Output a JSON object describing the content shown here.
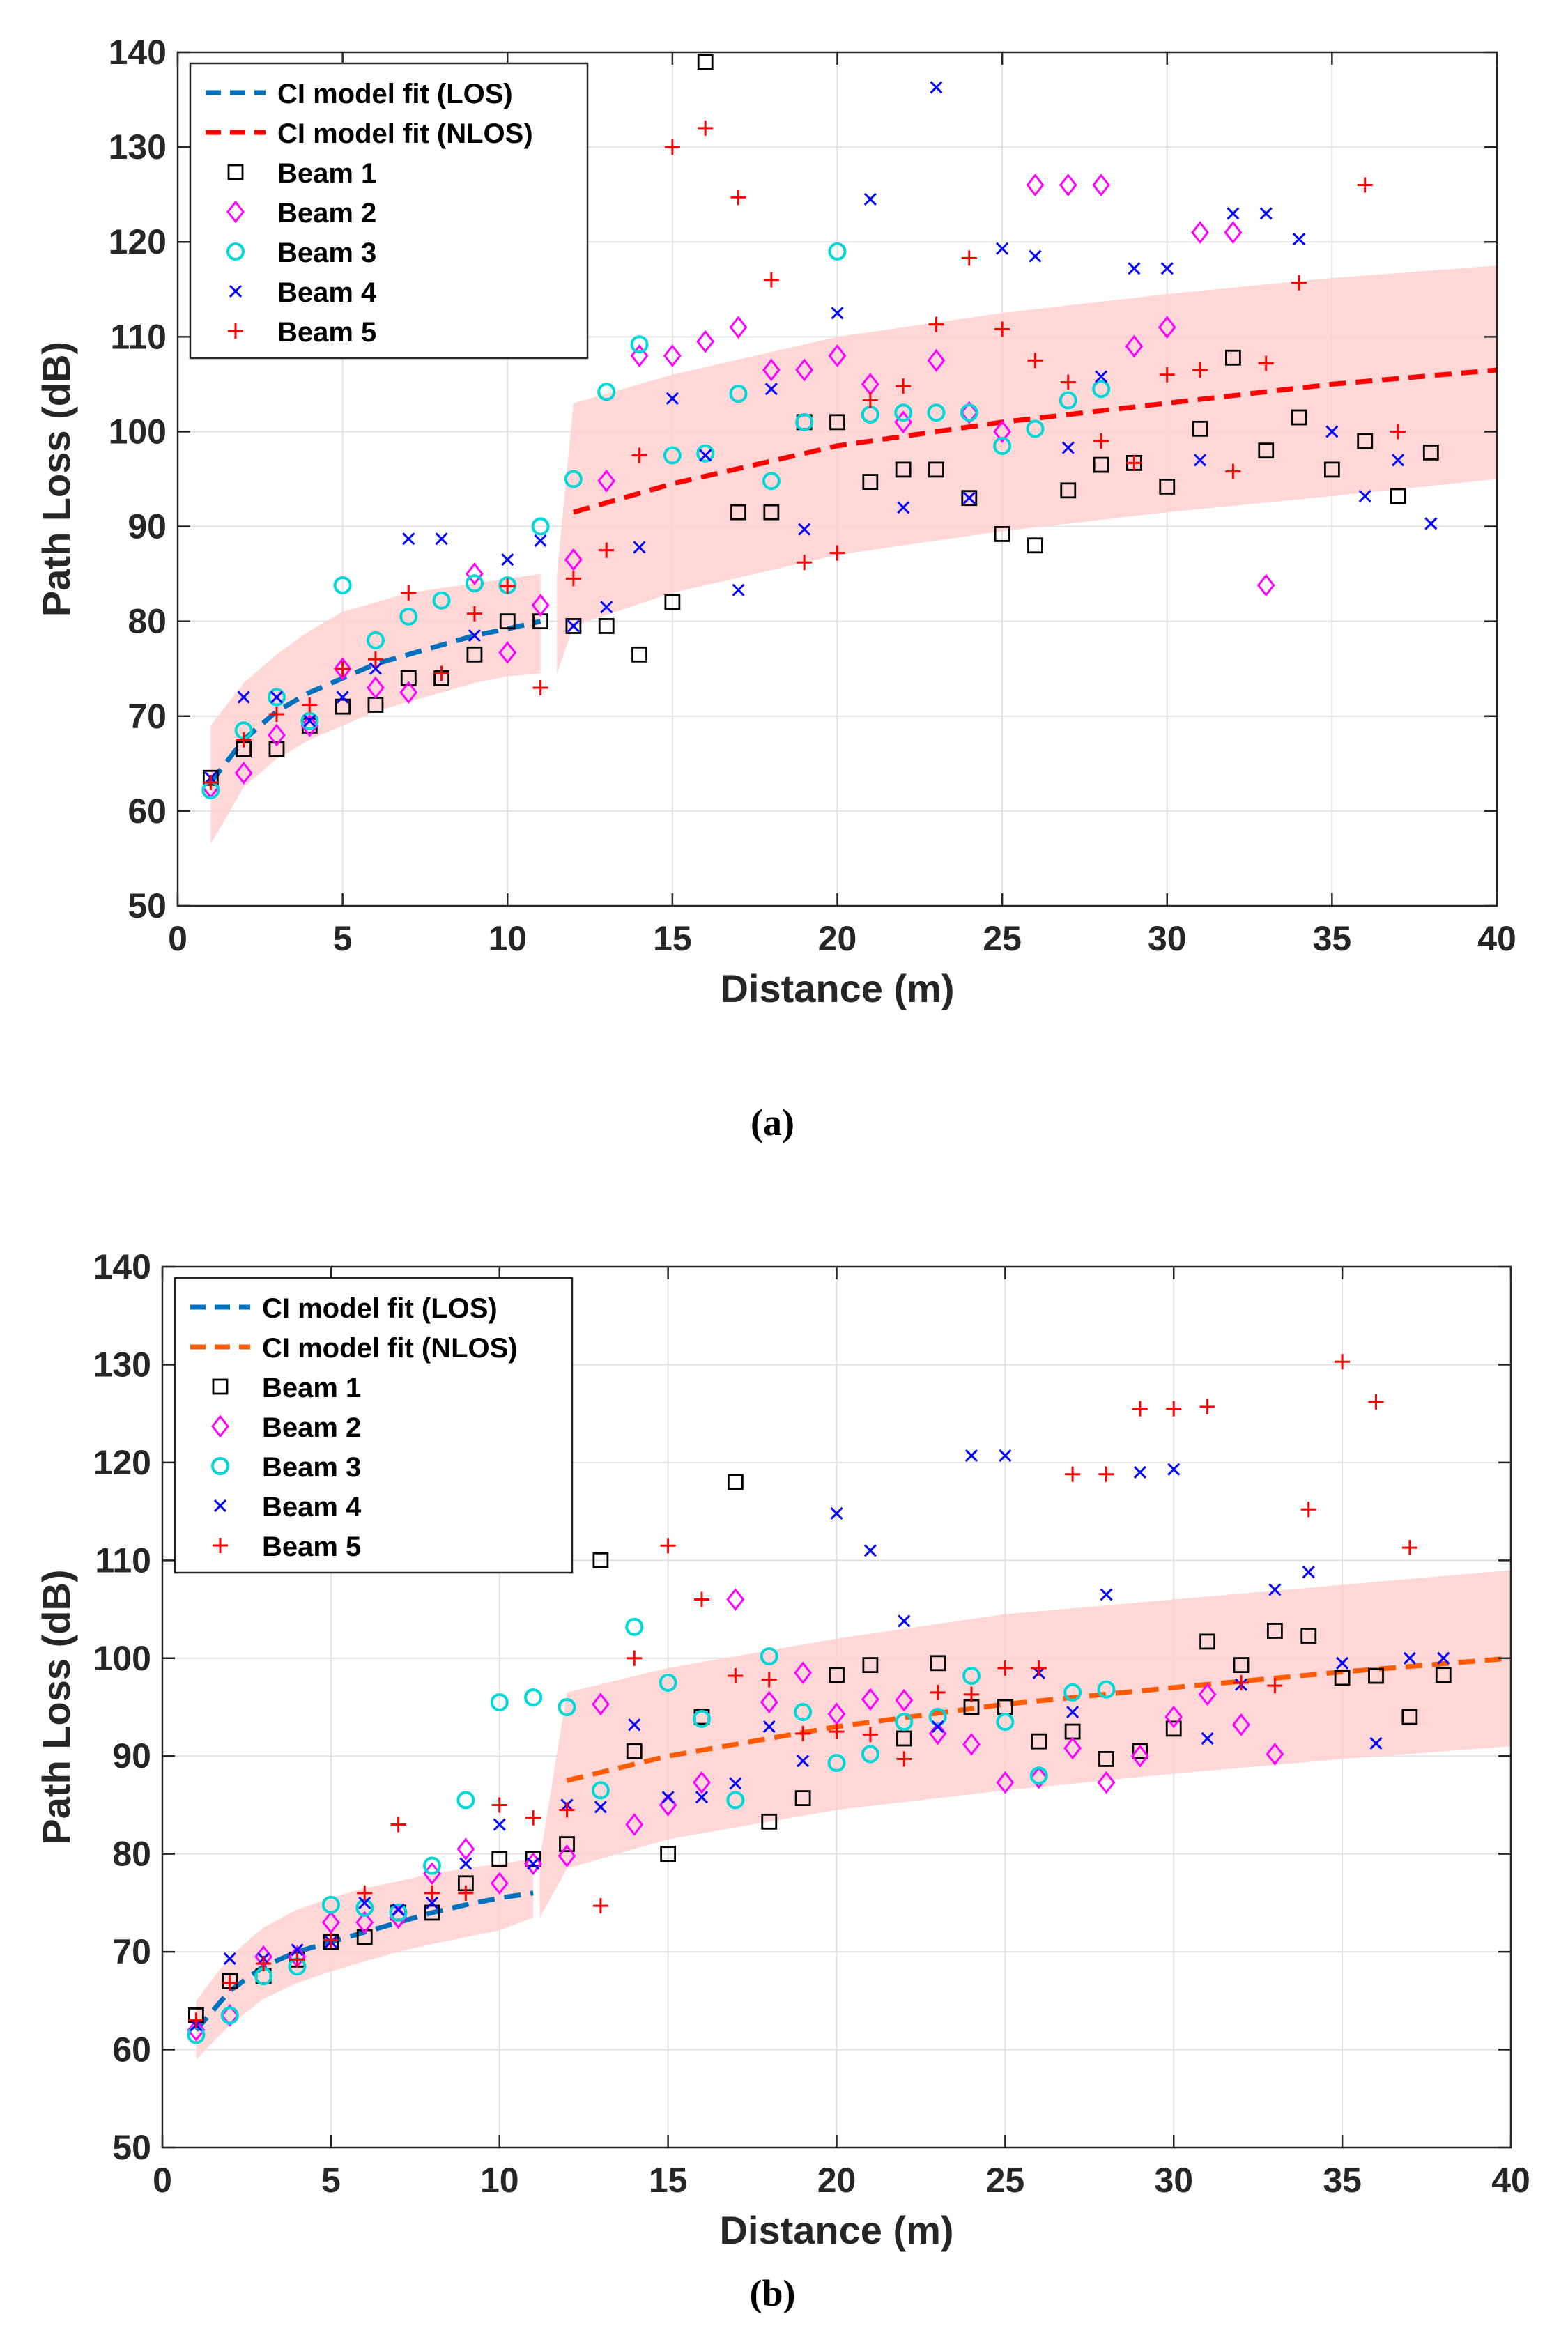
{
  "panels": [
    {
      "caption": "(a)"
    },
    {
      "caption": "(b)"
    }
  ],
  "chart_data": [
    {
      "type": "scatter",
      "panel": "(a)",
      "xlabel": "Distance (m)",
      "ylabel": "Path Loss (dB)",
      "xlim": [
        0,
        40
      ],
      "ylim": [
        50,
        140
      ],
      "xticks": [
        0,
        5,
        10,
        15,
        20,
        25,
        30,
        35,
        40
      ],
      "yticks": [
        50,
        60,
        70,
        80,
        90,
        100,
        110,
        120,
        130,
        140
      ],
      "grid": true,
      "legend_position": "top-left",
      "colors": {
        "los": "#0072bd",
        "nlos": "#ff0000",
        "beam1": "#000000",
        "beam2": "#ff00ff",
        "beam3": "#00d8d8",
        "beam4": "#0000ff",
        "beam5": "#ff0000",
        "band": "#ffd0d0"
      },
      "lines": [
        {
          "name": "CI model fit (LOS)",
          "x": [
            1,
            2,
            3,
            4,
            5,
            6,
            7,
            8,
            9,
            10,
            11
          ],
          "y": [
            63,
            67.5,
            70.5,
            72.5,
            74,
            75.5,
            76.5,
            77.5,
            78.5,
            79.2,
            80
          ]
        },
        {
          "name": "CI model fit (NLOS)",
          "x": [
            12,
            15,
            20,
            25,
            30,
            35,
            40
          ],
          "y": [
            91.5,
            94.5,
            98.5,
            101,
            103,
            105,
            106.5
          ]
        }
      ],
      "bands": [
        {
          "x": [
            1,
            2,
            3,
            4,
            5,
            6,
            7,
            8,
            9,
            10,
            11
          ],
          "upper": [
            69,
            73.5,
            76.5,
            79,
            81,
            82,
            83,
            83.5,
            84,
            84.5,
            85
          ],
          "lower": [
            56.5,
            62.5,
            65.5,
            67.5,
            69,
            70.5,
            71.5,
            72.5,
            73.5,
            74.2,
            74.5
          ]
        },
        {
          "x": [
            11.5,
            12,
            15,
            20,
            25,
            30,
            35,
            40
          ],
          "upper": [
            85,
            103,
            106,
            110,
            112.5,
            114.5,
            116.2,
            117.5
          ],
          "lower": [
            74.5,
            79.5,
            83,
            87,
            89.5,
            91.5,
            93.2,
            95
          ]
        }
      ],
      "series": [
        {
          "name": "Beam 1",
          "marker": "square",
          "x": [
            1,
            2,
            3,
            4,
            5,
            6,
            7,
            8,
            9,
            10,
            11,
            12,
            13,
            14,
            15,
            16,
            17,
            18,
            19,
            20,
            21,
            22,
            23,
            24,
            25,
            26,
            27,
            28,
            29,
            30,
            31,
            32,
            33,
            34,
            35,
            36,
            37,
            38
          ],
          "y": [
            63.5,
            66.5,
            66.5,
            69,
            71,
            71.2,
            74,
            74,
            76.5,
            80,
            80,
            79.5,
            79.5,
            76.5,
            82,
            139,
            91.5,
            91.5,
            101,
            101,
            94.7,
            96,
            96,
            93,
            89.2,
            88,
            93.8,
            96.5,
            96.7,
            94.2,
            100.3,
            107.8,
            98,
            101.5,
            96,
            99,
            93.2,
            97.8
          ]
        },
        {
          "name": "Beam 2",
          "marker": "diamond",
          "x": [
            1,
            2,
            3,
            4,
            5,
            6,
            7,
            9,
            10,
            11,
            12,
            13,
            14,
            15,
            16,
            17,
            18,
            19,
            20,
            21,
            22,
            23,
            24,
            25,
            26,
            27,
            28,
            29,
            30,
            31,
            32,
            33
          ],
          "y": [
            62.5,
            64,
            68,
            69,
            75,
            73,
            72.5,
            85,
            76.7,
            81.7,
            86.5,
            94.8,
            108,
            108,
            109.5,
            111,
            106.5,
            106.5,
            108,
            105,
            101,
            107.5,
            102,
            100,
            126,
            126,
            126,
            109,
            111,
            121,
            121,
            83.8
          ]
        },
        {
          "name": "Beam 3",
          "marker": "circle",
          "x": [
            1,
            2,
            3,
            4,
            5,
            6,
            7,
            8,
            9,
            10,
            11,
            12,
            13,
            14,
            15,
            16,
            17,
            18,
            19,
            20,
            21,
            22,
            23,
            24,
            25,
            26,
            27,
            28
          ],
          "y": [
            62.2,
            68.5,
            72,
            69.5,
            83.8,
            78,
            80.5,
            82.2,
            84,
            83.8,
            90,
            95,
            104.2,
            109.2,
            97.5,
            97.7,
            104,
            94.8,
            101,
            119,
            101.8,
            102,
            102,
            102,
            98.5,
            100.3,
            103.3,
            104.5
          ]
        },
        {
          "name": "Beam 4",
          "marker": "x",
          "x": [
            1,
            2,
            3,
            4,
            5,
            6,
            7,
            8,
            9,
            10,
            11,
            12,
            13,
            14,
            15,
            16,
            17,
            18,
            19,
            20,
            21,
            22,
            23,
            24,
            25,
            26,
            27,
            28,
            29,
            30,
            31,
            32,
            33,
            34,
            35,
            36,
            37,
            38
          ],
          "y": [
            63.5,
            72,
            72,
            69.5,
            72,
            75,
            88.7,
            88.7,
            78.5,
            86.5,
            88.5,
            79.5,
            81.5,
            87.8,
            103.5,
            97.5,
            83.3,
            104.5,
            89.7,
            112.5,
            124.5,
            92,
            136.3,
            93,
            119.3,
            118.5,
            98.3,
            105.8,
            117.2,
            117.2,
            97,
            123,
            123,
            120.3,
            100,
            93.2,
            97,
            90.3
          ]
        },
        {
          "name": "Beam 5",
          "marker": "plus",
          "x": [
            1,
            2,
            3,
            4,
            5,
            6,
            7,
            8,
            9,
            10,
            11,
            12,
            13,
            14,
            15,
            16,
            17,
            18,
            19,
            20,
            21,
            22,
            23,
            24,
            25,
            26,
            27,
            28,
            29,
            30,
            31,
            32,
            33,
            34,
            36,
            37
          ],
          "y": [
            63,
            67.5,
            70.2,
            71.2,
            75,
            76,
            83,
            74.5,
            80.8,
            83.7,
            73,
            84.5,
            87.5,
            97.5,
            130,
            132,
            124.7,
            116,
            86.2,
            87.2,
            103.3,
            104.8,
            111.3,
            118.3,
            110.8,
            107.5,
            105.2,
            99,
            96.7,
            106,
            106.5,
            95.8,
            107.2,
            115.7,
            126,
            100
          ]
        }
      ]
    },
    {
      "type": "scatter",
      "panel": "(b)",
      "xlabel": "Distance (m)",
      "ylabel": "Path Loss (dB)",
      "xlim": [
        0,
        40
      ],
      "ylim": [
        50,
        140
      ],
      "xticks": [
        0,
        5,
        10,
        15,
        20,
        25,
        30,
        35,
        40
      ],
      "yticks": [
        50,
        60,
        70,
        80,
        90,
        100,
        110,
        120,
        130,
        140
      ],
      "grid": true,
      "legend_position": "top-left",
      "colors": {
        "los": "#0072bd",
        "nlos": "#ff5a00",
        "beam1": "#000000",
        "beam2": "#ff00ff",
        "beam3": "#00d8d8",
        "beam4": "#0000ff",
        "beam5": "#ff0000",
        "band": "#ffd0d0"
      },
      "lines": [
        {
          "name": "CI model fit (LOS)",
          "x": [
            1,
            2,
            3,
            4,
            5,
            6,
            7,
            8,
            9,
            10,
            11
          ],
          "y": [
            62,
            66,
            68.5,
            70,
            71,
            72,
            73,
            74,
            74.8,
            75.5,
            76
          ]
        },
        {
          "name": "CI model fit (NLOS)",
          "x": [
            12,
            15,
            20,
            25,
            30,
            35,
            40
          ],
          "y": [
            87.5,
            90,
            93,
            95.3,
            97,
            98.6,
            100
          ]
        }
      ],
      "bands": [
        {
          "x": [
            1,
            2,
            3,
            4,
            5,
            6,
            7,
            8,
            9,
            10,
            11
          ],
          "upper": [
            65,
            69.5,
            72.5,
            74.3,
            75.5,
            76.5,
            77.2,
            78,
            78.5,
            79,
            79.5
          ],
          "lower": [
            59,
            62.5,
            65.2,
            66.8,
            68,
            69,
            70,
            70.8,
            71.5,
            72.2,
            73.5
          ]
        },
        {
          "x": [
            11.2,
            12,
            15,
            20,
            25,
            30,
            35,
            40
          ],
          "upper": [
            79.5,
            96.5,
            99,
            102,
            104.5,
            106,
            107.5,
            109
          ],
          "lower": [
            73.5,
            78.5,
            81.5,
            84.5,
            86.5,
            88.2,
            89.7,
            91
          ]
        }
      ],
      "series": [
        {
          "name": "Beam 1",
          "marker": "square",
          "x": [
            1,
            2,
            3,
            4,
            5,
            6,
            7,
            8,
            9,
            10,
            11,
            12,
            13,
            14,
            15,
            16,
            17,
            18,
            19,
            20,
            21,
            22,
            23,
            24,
            25,
            26,
            27,
            28,
            29,
            30,
            31,
            32,
            33,
            34,
            35,
            36,
            37,
            38
          ],
          "y": [
            63.5,
            67,
            67.5,
            69.2,
            71,
            71.5,
            74,
            74,
            77,
            79.5,
            79.5,
            81,
            110,
            90.5,
            80,
            94,
            118,
            83.3,
            85.7,
            98.3,
            99.3,
            91.8,
            99.5,
            95,
            95,
            91.5,
            92.5,
            89.7,
            90.5,
            92.8,
            101.7,
            99.3,
            102.8,
            102.3,
            98,
            98.2,
            94,
            98.3
          ]
        },
        {
          "name": "Beam 2",
          "marker": "diamond",
          "x": [
            1,
            2,
            3,
            4,
            5,
            6,
            7,
            8,
            9,
            10,
            11,
            12,
            13,
            14,
            15,
            16,
            17,
            18,
            19,
            20,
            21,
            22,
            23,
            24,
            25,
            26,
            27,
            28,
            29,
            30,
            31,
            32,
            33
          ],
          "y": [
            62,
            63.5,
            69.5,
            69.5,
            73,
            73,
            73.5,
            78,
            80.5,
            77,
            79,
            79.8,
            95.3,
            83,
            85,
            87.3,
            106,
            95.5,
            98.5,
            94.3,
            95.8,
            95.7,
            92.3,
            91.2,
            87.3,
            87.8,
            90.8,
            87.3,
            90,
            94,
            96.3,
            93.2,
            90.2
          ]
        },
        {
          "name": "Beam 3",
          "marker": "circle",
          "x": [
            1,
            2,
            3,
            4,
            5,
            6,
            7,
            8,
            9,
            10,
            11,
            12,
            13,
            14,
            15,
            16,
            17,
            18,
            19,
            20,
            21,
            22,
            23,
            24,
            25,
            26,
            27,
            28
          ],
          "y": [
            61.5,
            63.5,
            67.5,
            68.5,
            74.8,
            74.5,
            74,
            78.8,
            85.5,
            95.5,
            96,
            95,
            86.5,
            103.2,
            97.5,
            93.8,
            85.5,
            100.2,
            94.5,
            89.3,
            90.2,
            93.5,
            94,
            98.2,
            93.5,
            88,
            96.5,
            96.8
          ]
        },
        {
          "name": "Beam 4",
          "marker": "x",
          "x": [
            1,
            2,
            3,
            4,
            5,
            6,
            7,
            8,
            9,
            10,
            11,
            12,
            13,
            14,
            15,
            16,
            17,
            18,
            19,
            20,
            21,
            22,
            23,
            24,
            25,
            26,
            27,
            28,
            29,
            30,
            31,
            32,
            33,
            34,
            35,
            36,
            37,
            38
          ],
          "y": [
            62.5,
            69.3,
            69.3,
            70.2,
            71,
            75,
            74.3,
            75,
            79,
            83,
            79,
            85,
            84.8,
            93.2,
            85.8,
            85.8,
            87.2,
            93,
            89.5,
            114.8,
            111,
            103.8,
            93,
            120.7,
            120.7,
            98.5,
            94.5,
            106.5,
            119,
            119.3,
            91.8,
            97.3,
            107,
            108.8,
            99.5,
            91.3,
            100,
            100
          ]
        },
        {
          "name": "Beam 5",
          "marker": "plus",
          "x": [
            1,
            2,
            3,
            4,
            5,
            6,
            7,
            8,
            9,
            10,
            11,
            12,
            13,
            14,
            15,
            16,
            17,
            18,
            19,
            20,
            21,
            22,
            23,
            24,
            25,
            26,
            27,
            28,
            29,
            30,
            31,
            32,
            33,
            34,
            35,
            36,
            37
          ],
          "y": [
            63,
            66.8,
            68.8,
            69.2,
            71.2,
            76,
            83,
            76,
            76,
            85,
            83.7,
            84.5,
            74.7,
            100,
            111.5,
            106,
            98.2,
            97.8,
            92.3,
            92.5,
            92.2,
            89.7,
            96.5,
            96.3,
            99,
            99,
            118.8,
            118.8,
            125.5,
            125.5,
            125.7,
            97.5,
            97.2,
            115.2,
            130.3,
            126.2,
            111.3
          ]
        }
      ]
    }
  ]
}
